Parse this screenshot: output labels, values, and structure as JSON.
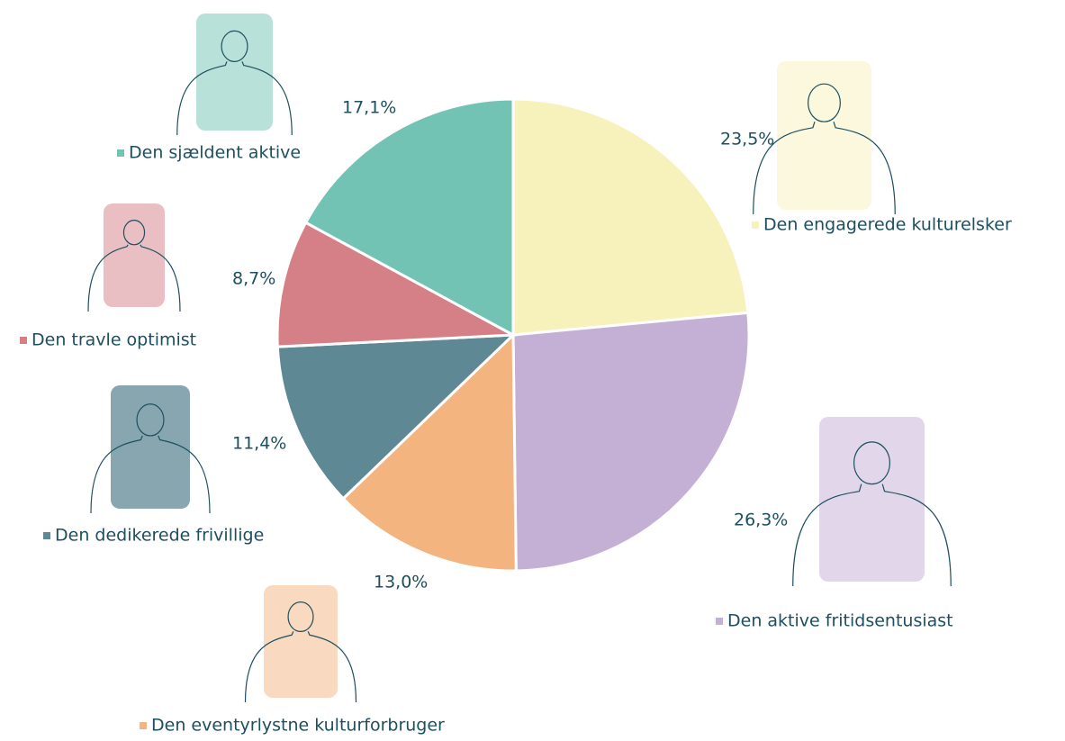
{
  "chart_data": {
    "type": "pie",
    "categories": [
      "Den engagerede kulturelsker",
      "Den aktive fritidsentusiast",
      "Den eventyrlystne kulturforbruger",
      "Den dedikerede frivillige",
      "Den travle optimist",
      "Den sjældent aktive"
    ],
    "values": [
      23.5,
      26.3,
      13.0,
      11.4,
      8.7,
      17.1
    ],
    "value_labels": [
      "23,5%",
      "26,3%",
      "13,0%",
      "11,4%",
      "8,7%",
      "17,1%"
    ],
    "colors": [
      "#f7f1bb",
      "#c5b0d5",
      "#f4b47f",
      "#5f8895",
      "#d58087",
      "#72c3b4"
    ]
  }
}
